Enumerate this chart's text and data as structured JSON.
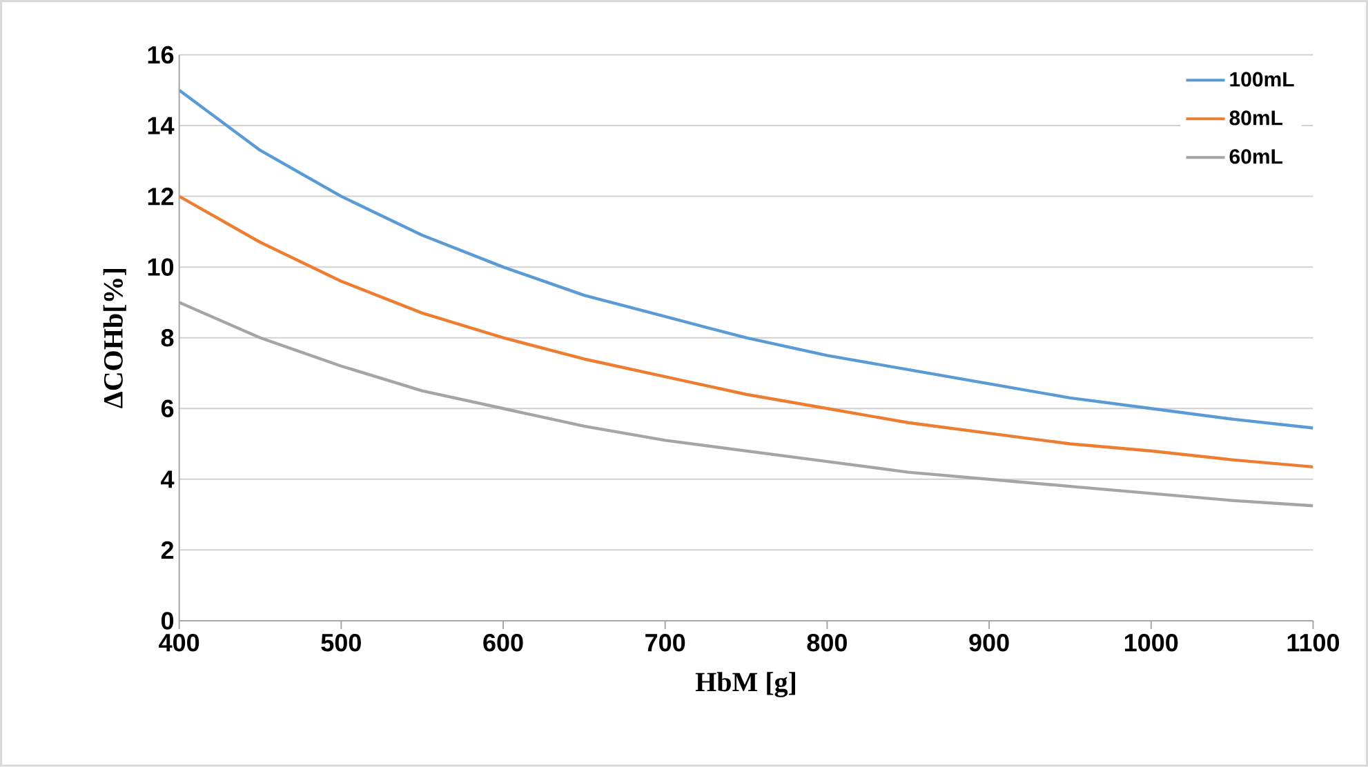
{
  "chart_data": {
    "type": "line",
    "xlabel": "HbM [g]",
    "ylabel": "ΔCOHb[%]",
    "x": [
      400,
      450,
      500,
      550,
      600,
      650,
      700,
      750,
      800,
      850,
      900,
      950,
      1000,
      1050,
      1100
    ],
    "series": [
      {
        "name": "100mL",
        "color": "#5b9bd5",
        "values": [
          15,
          13.3,
          12,
          10.9,
          10,
          9.2,
          8.6,
          8,
          7.5,
          7.1,
          6.7,
          6.3,
          6,
          5.7,
          5.45
        ]
      },
      {
        "name": "80mL",
        "color": "#ed7d31",
        "values": [
          12,
          10.7,
          9.6,
          8.7,
          8,
          7.4,
          6.9,
          6.4,
          6,
          5.6,
          5.3,
          5.0,
          4.8,
          4.55,
          4.35
        ]
      },
      {
        "name": "60mL",
        "color": "#a5a5a5",
        "values": [
          9,
          8,
          7.2,
          6.5,
          6,
          5.5,
          5.1,
          4.8,
          4.5,
          4.2,
          4.0,
          3.8,
          3.6,
          3.4,
          3.25
        ]
      }
    ],
    "xlim": [
      400,
      1100
    ],
    "xticks": [
      400,
      500,
      600,
      700,
      800,
      900,
      1000,
      1100
    ],
    "ylim": [
      0,
      16
    ],
    "yticks": [
      0,
      2,
      4,
      6,
      8,
      10,
      12,
      14,
      16
    ],
    "grid": "y",
    "legend": "top right",
    "marker": "none",
    "line_style": "solid"
  }
}
